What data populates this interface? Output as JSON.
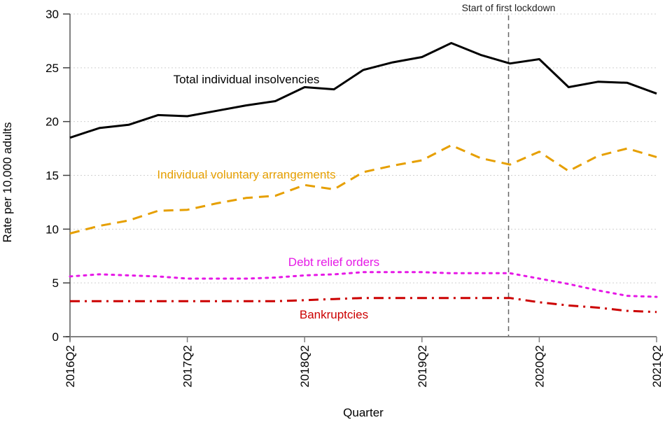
{
  "chart_data": {
    "type": "line",
    "title": "",
    "xlabel": "Quarter",
    "ylabel": "Rate per 10,000 adults",
    "ylim": [
      0,
      30
    ],
    "yticks": [
      0,
      5,
      10,
      15,
      20,
      25,
      30
    ],
    "grid": "horizontal dotted",
    "x": [
      "2016Q2",
      "2016Q3",
      "2016Q4",
      "2017Q1",
      "2017Q2",
      "2017Q3",
      "2017Q4",
      "2018Q1",
      "2018Q2",
      "2018Q3",
      "2018Q4",
      "2019Q1",
      "2019Q2",
      "2019Q3",
      "2019Q4",
      "2020Q1",
      "2020Q2",
      "2020Q3",
      "2020Q4",
      "2021Q1",
      "2021Q2"
    ],
    "xtick_labels": [
      "2016Q2",
      "2017Q2",
      "2018Q2",
      "2019Q2",
      "2020Q2",
      "2021Q2"
    ],
    "series": [
      {
        "name": "Total individual insolvencies",
        "color": "#000000",
        "style": "solid",
        "values": [
          18.5,
          19.4,
          19.7,
          20.6,
          20.5,
          21.0,
          21.5,
          21.9,
          23.2,
          23.0,
          24.8,
          25.5,
          26.0,
          27.3,
          26.2,
          25.4,
          25.8,
          23.2,
          23.7,
          23.6,
          22.6
        ]
      },
      {
        "name": "Individual voluntary arrangements",
        "color": "#E69F00",
        "style": "dashed",
        "values": [
          9.6,
          10.3,
          10.8,
          11.7,
          11.8,
          12.4,
          12.9,
          13.1,
          14.1,
          13.7,
          15.3,
          15.9,
          16.4,
          17.8,
          16.6,
          16.0,
          17.2,
          15.4,
          16.8,
          17.5,
          16.7
        ]
      },
      {
        "name": "Debt relief orders",
        "color": "#E619E6",
        "style": "dotted",
        "values": [
          5.6,
          5.8,
          5.7,
          5.6,
          5.4,
          5.4,
          5.4,
          5.5,
          5.7,
          5.8,
          6.0,
          6.0,
          6.0,
          5.9,
          5.9,
          5.9,
          5.4,
          4.9,
          4.3,
          3.8,
          3.7
        ]
      },
      {
        "name": "Bankruptcies",
        "color": "#CC0000",
        "style": "dashdot",
        "values": [
          3.3,
          3.3,
          3.3,
          3.3,
          3.3,
          3.3,
          3.3,
          3.3,
          3.4,
          3.5,
          3.6,
          3.6,
          3.6,
          3.6,
          3.6,
          3.6,
          3.2,
          2.9,
          2.7,
          2.4,
          2.3
        ]
      }
    ],
    "annotations": [
      {
        "text": "Start of first lockdown",
        "at_x": "2020Q1",
        "type": "vertical-dashed-line"
      }
    ],
    "legend": "inline labels near series"
  }
}
